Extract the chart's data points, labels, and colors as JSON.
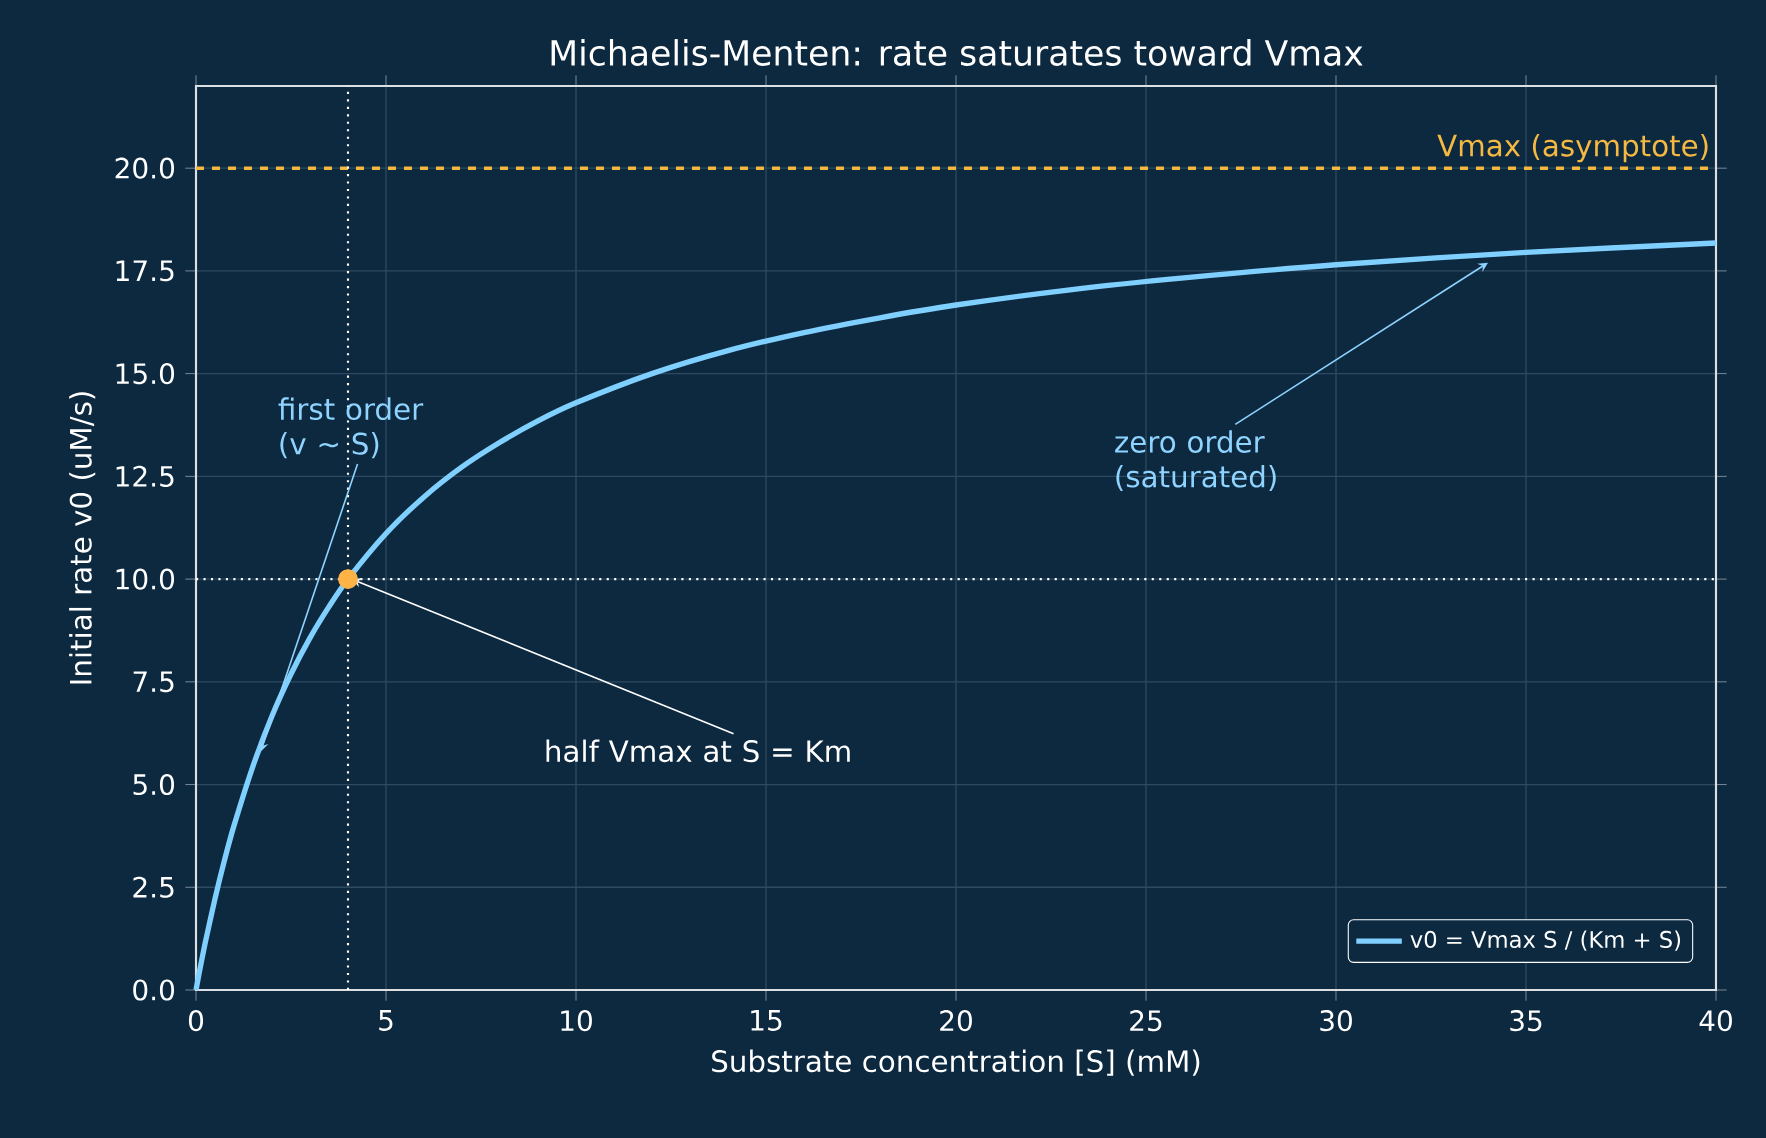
{
  "chart_data": {
    "type": "line",
    "title": "Michaelis-Menten: rate saturates toward Vmax",
    "xlabel": "Substrate concentration  [S]  (mM)",
    "ylabel": "Initial rate  v0  (uM/s)",
    "xlim": [
      0,
      40
    ],
    "ylim": [
      0,
      22
    ],
    "xticks": [
      0,
      5,
      10,
      15,
      20,
      25,
      30,
      35,
      40
    ],
    "yticks": [
      {
        "value": 0,
        "label": "0.0"
      },
      {
        "value": 2.5,
        "label": "2.5"
      },
      {
        "value": 5,
        "label": "5.0"
      },
      {
        "value": 7.5,
        "label": "7.5"
      },
      {
        "value": 10,
        "label": "10.0"
      },
      {
        "value": 12.5,
        "label": "12.5"
      },
      {
        "value": 15,
        "label": "15.0"
      },
      {
        "value": 17.5,
        "label": "17.5"
      },
      {
        "value": 20,
        "label": "20.0"
      }
    ],
    "grid": true,
    "legend": "bottom right",
    "series": [
      {
        "name": "v0 = Vmax S / (Km + S)",
        "color": "#80d0ff",
        "x": [
          0,
          0.1,
          0.25,
          0.5,
          0.75,
          1,
          1.5,
          2,
          2.5,
          3,
          3.5,
          4,
          5,
          6,
          7,
          8,
          9,
          10,
          12,
          14,
          16,
          18,
          20,
          23,
          26,
          30,
          35,
          40
        ],
        "values": [
          0,
          0.49,
          1.18,
          2.22,
          3.16,
          4.0,
          5.45,
          6.67,
          7.69,
          8.57,
          9.33,
          10,
          11.11,
          12,
          12.73,
          13.33,
          13.85,
          14.29,
          15,
          15.56,
          16,
          16.36,
          16.67,
          17.04,
          17.33,
          17.65,
          17.95,
          18.18
        ]
      },
      {
        "type": "scatter",
        "marker": "circle",
        "color": "#ffb347",
        "x": [
          4
        ],
        "values": [
          10
        ]
      }
    ],
    "ref_lines": [
      {
        "axis": "y",
        "value": 20,
        "label": "Vmax (asymptote)",
        "color": "#f5b942",
        "line_style": "dashed"
      },
      {
        "axis": "y",
        "value": 10,
        "color": "#ffffff",
        "line_style": "dotted"
      },
      {
        "axis": "x",
        "value": 4,
        "color": "#ffffff",
        "line_style": "dotted"
      }
    ],
    "annotations": [
      {
        "text": "first order (v ~ S)",
        "x": 1.7,
        "y": 5.8
      },
      {
        "text": "zero order (saturated)",
        "x": 34,
        "y": 17.7
      },
      {
        "text": "half Vmax at S = Km",
        "x": 4.1,
        "y": 10
      }
    ]
  }
}
